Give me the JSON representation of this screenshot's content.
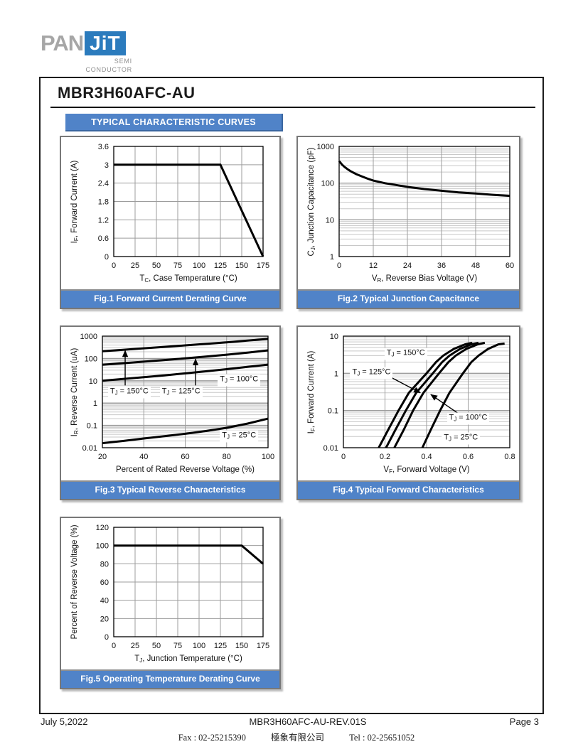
{
  "header": {
    "logo": {
      "pan": "PAN",
      "jit": "JiT",
      "sub1": "SEMI",
      "sub2": "CONDUCTOR"
    },
    "part_number": "MBR3H60AFC-AU"
  },
  "section": {
    "banner": "TYPICAL CHARACTERISTIC CURVES"
  },
  "colors": {
    "accent_blue": "#5083c8",
    "accent_dark": "#3a66a0",
    "logo_blue": "#2b7bbd",
    "logo_gray": "#a6a6a6",
    "panel_border": "#787878",
    "grid_minor": "#c8c8c8",
    "grid_major": "#9d9d9d",
    "curve_black": "#000000"
  },
  "footer": {
    "date": "July 5,2022",
    "doc": "MBR3H60AFC-AU-REV.01S",
    "page": "Page 3",
    "fax": "Fax : 02-25215390",
    "company": "極象有限公司",
    "tel": "Tel : 02-25651052"
  },
  "chart_data": [
    {
      "type": "line",
      "caption": "Fig.1 Forward Current Derating Curve",
      "xlabel": {
        "pre": "T",
        "sub": "C",
        "post": ", Case Temperature (°C)"
      },
      "ylabel": {
        "pre": "I",
        "sub": "F",
        "post": ", Forward Current (A)"
      },
      "xscale": "linear",
      "yscale": "linear",
      "xlim": [
        0,
        175
      ],
      "ylim": [
        0,
        3.6
      ],
      "xticks": [
        0,
        25,
        50,
        75,
        100,
        125,
        150,
        175
      ],
      "xticklabels": [
        "0",
        "25",
        "50",
        "75",
        "100",
        "125",
        "150",
        "175"
      ],
      "yticks": [
        0,
        0.6,
        1.2,
        1.8,
        2.4,
        3,
        3.6
      ],
      "yticklabels": [
        "0",
        "0.6",
        "1.2",
        "1.8",
        "2.4",
        "3",
        "3.6"
      ],
      "series": [
        {
          "name": "forward-current-derating",
          "x": [
            0,
            125,
            175
          ],
          "y": [
            3,
            3,
            0
          ]
        }
      ],
      "annotations": [],
      "arrows": []
    },
    {
      "type": "line",
      "caption": "Fig.2 Typical Junction Capacitance",
      "xlabel": {
        "pre": "V",
        "sub": "R",
        "post": ", Reverse Bias Voltage (V)"
      },
      "ylabel": {
        "pre": "C",
        "sub": "J",
        "post": ", Junction Capacitance (pF)"
      },
      "xscale": "linear",
      "yscale": "log",
      "xlim": [
        0,
        60
      ],
      "ylim": [
        1,
        1000
      ],
      "xticks": [
        0,
        12,
        24,
        36,
        48,
        60
      ],
      "xticklabels": [
        "0",
        "12",
        "24",
        "36",
        "48",
        "60"
      ],
      "yticks": [
        1,
        10,
        100,
        1000
      ],
      "yticklabels": [
        "1",
        "10",
        "100",
        "1000"
      ],
      "series": [
        {
          "name": "junction-capacitance",
          "x": [
            0,
            1,
            2,
            3,
            4,
            6,
            8,
            10,
            12,
            16,
            20,
            24,
            30,
            36,
            42,
            48,
            54,
            60
          ],
          "y": [
            400,
            320,
            272,
            238,
            212,
            176,
            152,
            132,
            117,
            100,
            89,
            79,
            69,
            62,
            56,
            52,
            48,
            45
          ]
        }
      ],
      "annotations": [],
      "arrows": []
    },
    {
      "type": "line",
      "caption": "Fig.3 Typical Reverse Characteristics",
      "xlabel": {
        "pre": "",
        "sub": "",
        "post": "Percent of Rated Reverse Voltage (%)"
      },
      "ylabel": {
        "pre": "I",
        "sub": "R",
        "post": ", Reverse Current (uA)"
      },
      "xscale": "linear",
      "yscale": "log",
      "xlim": [
        20,
        100
      ],
      "ylim": [
        0.01,
        1000
      ],
      "xticks": [
        20,
        40,
        60,
        80,
        100
      ],
      "xticklabels": [
        "20",
        "40",
        "60",
        "80",
        "100"
      ],
      "yticks": [
        0.01,
        0.1,
        1,
        10,
        100,
        1000
      ],
      "yticklabels": [
        "0.01",
        "0.1",
        "1",
        "10",
        "100",
        "1000"
      ],
      "series": [
        {
          "name": "TJ = 150°C",
          "x": [
            20,
            30,
            40,
            50,
            60,
            70,
            80,
            90,
            100
          ],
          "y": [
            210,
            245,
            285,
            330,
            385,
            450,
            530,
            630,
            750
          ]
        },
        {
          "name": "TJ = 125°C",
          "x": [
            20,
            30,
            40,
            50,
            60,
            70,
            80,
            90,
            100
          ],
          "y": [
            52,
            61,
            72,
            85,
            101,
            121,
            148,
            183,
            230
          ]
        },
        {
          "name": "TJ = 100°C",
          "x": [
            20,
            30,
            40,
            50,
            60,
            70,
            80,
            90,
            100
          ],
          "y": [
            10,
            12,
            14.5,
            17.5,
            21.5,
            26.5,
            33,
            42,
            53
          ]
        },
        {
          "name": "TJ = 25°C",
          "x": [
            20,
            30,
            40,
            50,
            60,
            70,
            80,
            90,
            100
          ],
          "y": [
            0.016,
            0.02,
            0.026,
            0.033,
            0.042,
            0.056,
            0.078,
            0.12,
            0.2
          ]
        }
      ],
      "annotations": [
        {
          "pre": "T",
          "sub": "J",
          "post": " = 150°C",
          "x": 33,
          "y": 3
        },
        {
          "pre": "T",
          "sub": "J",
          "post": " = 125°C",
          "x": 58,
          "y": 3
        },
        {
          "pre": "T",
          "sub": "J",
          "post": " = 100°C",
          "x": 86,
          "y": 11
        },
        {
          "pre": "T",
          "sub": "J",
          "post": " = 25°C",
          "x": 86,
          "y": 0.032
        }
      ],
      "arrows": [
        {
          "x1": 31,
          "y1": 6.2,
          "x2": 31,
          "y2": 228
        },
        {
          "x1": 65,
          "y1": 6.2,
          "x2": 65,
          "y2": 95
        }
      ]
    },
    {
      "type": "line",
      "caption": "Fig.4 Typical Forward Characteristics",
      "xlabel": {
        "pre": "V",
        "sub": "F",
        "post": ", Forward Voltage (V)"
      },
      "ylabel": {
        "pre": "I",
        "sub": "F",
        "post": ", Forward Current (A)"
      },
      "xscale": "linear",
      "yscale": "log",
      "xlim": [
        0,
        0.8
      ],
      "ylim": [
        0.01,
        10
      ],
      "xticks": [
        0,
        0.2,
        0.4,
        0.6,
        0.8
      ],
      "xticklabels": [
        "0",
        "0.2",
        "0.4",
        "0.6",
        "0.8"
      ],
      "yticks": [
        0.01,
        0.1,
        1,
        10
      ],
      "yticklabels": [
        "0.01",
        "0.1",
        "1",
        "10"
      ],
      "series": [
        {
          "name": "TJ = 150°C",
          "x": [
            0.17,
            0.215,
            0.265,
            0.315,
            0.4,
            0.445,
            0.48,
            0.53,
            0.585,
            0.62
          ],
          "y": [
            0.01,
            0.03,
            0.1,
            0.3,
            1,
            2,
            3,
            4.5,
            6,
            6.6
          ]
        },
        {
          "name": "TJ = 125°C",
          "x": [
            0.205,
            0.25,
            0.3,
            0.35,
            0.43,
            0.475,
            0.51,
            0.56,
            0.615,
            0.65
          ],
          "y": [
            0.01,
            0.03,
            0.1,
            0.3,
            1,
            2,
            3,
            4.5,
            6,
            6.6
          ]
        },
        {
          "name": "TJ = 100°C",
          "x": [
            0.245,
            0.29,
            0.335,
            0.385,
            0.46,
            0.505,
            0.54,
            0.59,
            0.645,
            0.68
          ],
          "y": [
            0.01,
            0.03,
            0.1,
            0.3,
            1,
            2,
            3,
            4.5,
            6,
            6.6
          ]
        },
        {
          "name": "TJ = 25°C",
          "x": [
            0.38,
            0.42,
            0.465,
            0.51,
            0.575,
            0.615,
            0.65,
            0.695,
            0.745,
            0.775
          ],
          "y": [
            0.01,
            0.03,
            0.1,
            0.3,
            1,
            2,
            3,
            4.5,
            6,
            6.3
          ]
        }
      ],
      "annotations": [
        {
          "pre": "T",
          "sub": "J",
          "post": " = 150°C",
          "x": 0.3,
          "y": 3.3
        },
        {
          "pre": "T",
          "sub": "J",
          "post": " = 125°C",
          "x": 0.135,
          "y": 1.0
        },
        {
          "pre": "T",
          "sub": "J",
          "post": " = 100°C",
          "x": 0.6,
          "y": 0.062
        },
        {
          "pre": "T",
          "sub": "J",
          "post": " = 25°C",
          "x": 0.565,
          "y": 0.018
        }
      ],
      "arrows": [
        {
          "x1": 0.225,
          "y1": 0.8,
          "x2": 0.37,
          "y2": 0.3
        },
        {
          "x1": 0.55,
          "y1": 0.085,
          "x2": 0.42,
          "y2": 0.27
        }
      ]
    },
    {
      "type": "line",
      "caption": "Fig.5 Operating Temperature Derating Curve",
      "xlabel": {
        "pre": "T",
        "sub": "J",
        "post": ", Junction Temperature (°C)"
      },
      "ylabel": {
        "pre": "",
        "sub": "",
        "post": "Percent of Reverse Voltage (%)"
      },
      "xscale": "linear",
      "yscale": "linear",
      "xlim": [
        0,
        175
      ],
      "ylim": [
        0,
        120
      ],
      "xticks": [
        0,
        25,
        50,
        75,
        100,
        125,
        150,
        175
      ],
      "xticklabels": [
        "0",
        "25",
        "50",
        "75",
        "100",
        "125",
        "150",
        "175"
      ],
      "yticks": [
        0,
        20,
        40,
        60,
        80,
        100,
        120
      ],
      "yticklabels": [
        "0",
        "20",
        "40",
        "60",
        "80",
        "100",
        "120"
      ],
      "series": [
        {
          "name": "reverse-voltage-derating",
          "x": [
            0,
            150,
            175
          ],
          "y": [
            100,
            100,
            80
          ]
        }
      ],
      "annotations": [],
      "arrows": []
    }
  ]
}
